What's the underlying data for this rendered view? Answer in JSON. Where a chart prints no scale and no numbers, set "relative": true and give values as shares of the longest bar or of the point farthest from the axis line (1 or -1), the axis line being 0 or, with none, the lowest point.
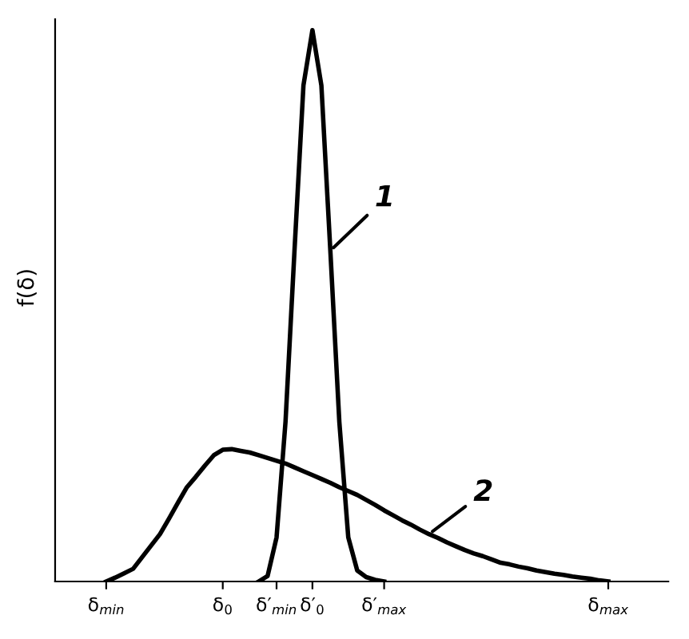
{
  "chart_data": {
    "type": "line",
    "relative": true,
    "ylabel": "f(δ)",
    "categories": [
      "δ$_{min}$",
      null,
      null,
      null,
      null,
      null,
      null,
      null,
      null,
      null,
      null,
      null,
      null,
      "δ$_{0}$",
      null,
      null,
      null,
      null,
      null,
      "δ′$_{min}$",
      null,
      null,
      null,
      "δ′$_{0}$",
      null,
      null,
      null,
      null,
      null,
      null,
      null,
      "δ′$_{max}$",
      null,
      null,
      null,
      null,
      null,
      null,
      null,
      null,
      null,
      null,
      null,
      null,
      null,
      null,
      null,
      null,
      null,
      null,
      null,
      null,
      null,
      null,
      null,
      null,
      "δ$_{max}$"
    ],
    "series": [
      {
        "color": "#000000",
        "values": [
          null,
          null,
          null,
          null,
          null,
          null,
          null,
          null,
          null,
          null,
          null,
          null,
          null,
          null,
          null,
          null,
          null,
          0,
          0.01,
          0.08,
          0.29,
          0.6,
          0.9,
          1,
          0.9,
          0.6,
          0.29,
          0.08,
          0.02,
          0.008,
          0.003,
          0,
          null,
          null,
          null,
          null,
          null,
          null,
          null,
          null,
          null,
          null,
          null,
          null,
          null,
          null,
          null,
          null,
          null,
          null,
          null,
          null,
          null,
          null,
          null,
          null,
          null
        ]
      },
      {
        "color": "#000000",
        "values": [
          0,
          0.007,
          0.015,
          0.023,
          0.044,
          0.065,
          0.086,
          0.114,
          0.143,
          0.171,
          0.19,
          0.21,
          0.229,
          0.239,
          0.24,
          0.237,
          0.234,
          0.229,
          0.224,
          0.219,
          0.214,
          0.207,
          0.2,
          0.193,
          0.186,
          0.179,
          0.171,
          0.164,
          0.157,
          0.148,
          0.139,
          0.129,
          0.12,
          0.111,
          0.103,
          0.094,
          0.086,
          0.079,
          0.071,
          0.064,
          0.057,
          0.051,
          0.046,
          0.04,
          0.034,
          0.031,
          0.027,
          0.024,
          0.02,
          0.017,
          0.014,
          0.012,
          0.009,
          0.007,
          0.005,
          0.002,
          0
        ]
      }
    ],
    "annotations": [
      "1",
      "2"
    ],
    "grid": false,
    "legend": false,
    "line_style": "solid"
  }
}
